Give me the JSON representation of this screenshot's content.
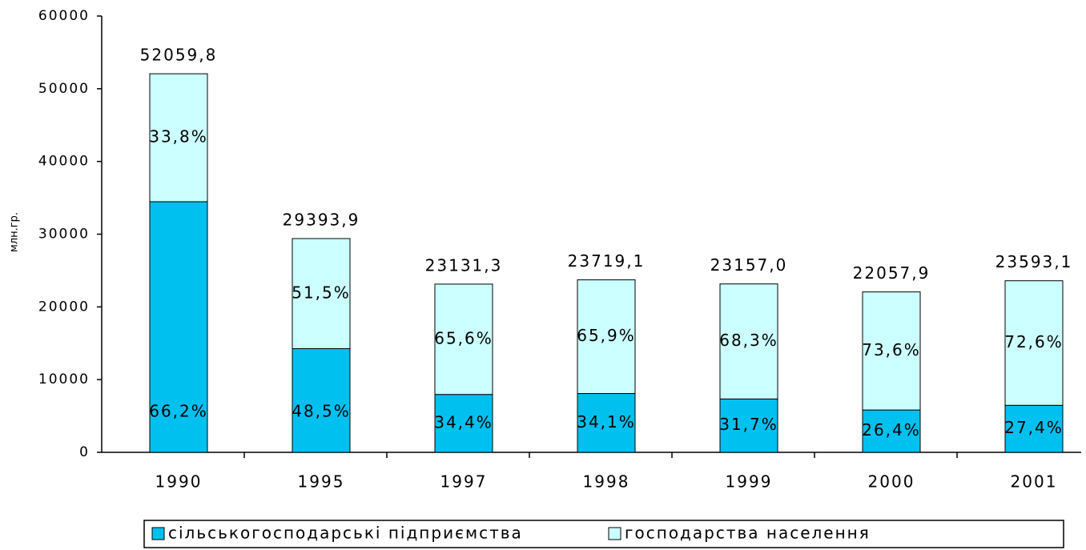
{
  "chart_data": {
    "type": "stacked_bar",
    "y_axis_label": "млн.гр.",
    "categories": [
      "1990",
      "1995",
      "1997",
      "1998",
      "1999",
      "2000",
      "2001"
    ],
    "series": [
      {
        "name": "сільськогосподарські підприємства",
        "color": "#00c0f0",
        "values": [
          34464,
          14256,
          7957,
          8088,
          7341,
          5823,
          6464
        ],
        "shares": [
          66.2,
          48.5,
          34.4,
          34.1,
          31.7,
          26.4,
          27.4
        ],
        "share_labels": [
          "66,2%",
          "48,5%",
          "34,4%",
          "34,1%",
          "31,7%",
          "26,4%",
          "27,4%"
        ]
      },
      {
        "name": "господарства населення",
        "color": "#ccffff",
        "values": [
          17596,
          15138,
          15174,
          15631,
          15816,
          16235,
          17129
        ],
        "shares": [
          33.8,
          51.5,
          65.6,
          65.9,
          68.3,
          73.6,
          72.6
        ],
        "share_labels": [
          "33,8%",
          "51,5%",
          "65,6%",
          "65,9%",
          "68,3%",
          "73,6%",
          "72,6%"
        ]
      }
    ],
    "totals": [
      52059.8,
      29393.9,
      23131.3,
      23719.1,
      23157.0,
      22057.9,
      23593.1
    ],
    "total_labels": [
      "52059,8",
      "29393,9",
      "23131,3",
      "23719,1",
      "23157,0",
      "22057,9",
      "23593,1"
    ],
    "ylim": [
      0,
      60000
    ],
    "yticks": [
      0,
      10000,
      20000,
      30000,
      40000,
      50000,
      60000
    ],
    "legend": "bottom"
  }
}
